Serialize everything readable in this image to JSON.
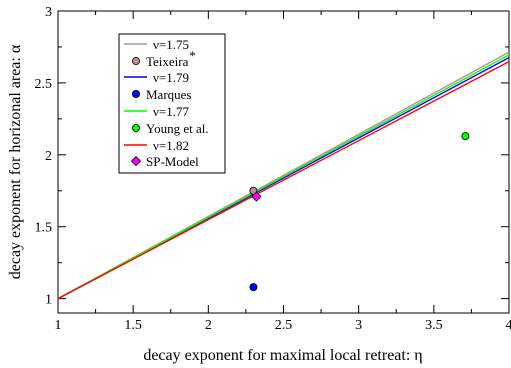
{
  "chart_data": {
    "type": "scatter",
    "xlabel": "decay exponent for maximal local retreat: η",
    "ylabel": "decay exponent for horizonal area: α",
    "xlim": [
      1,
      4
    ],
    "ylim": [
      0.9,
      3
    ],
    "x_ticks": [
      "1",
      "1.5",
      "2",
      "2.5",
      "3",
      "3.5",
      "4"
    ],
    "y_ticks": [
      "1",
      "1.5",
      "2",
      "2.5",
      "3"
    ],
    "grid": false,
    "legend_placement": "top-left",
    "lines": [
      {
        "name": "ν=1.75",
        "color": "#bc8f8f",
        "x": [
          1,
          4
        ],
        "y": [
          1.0,
          2.714
        ]
      },
      {
        "name": "ν=1.79",
        "color": "#0000ff",
        "x": [
          1,
          4
        ],
        "y": [
          1.0,
          2.676
        ]
      },
      {
        "name": "ν=1.77",
        "color": "#00ff00",
        "x": [
          1,
          4
        ],
        "y": [
          1.0,
          2.695
        ]
      },
      {
        "name": "ν=1.82",
        "color": "#ff0000",
        "x": [
          1,
          4
        ],
        "y": [
          1.0,
          2.648
        ]
      }
    ],
    "points": [
      {
        "name": "Teixeira",
        "superscript": "*",
        "color": "#bc8f8f",
        "marker": "circle",
        "x": 2.3,
        "y": 1.75
      },
      {
        "name": "Marques",
        "color": "#0000ff",
        "marker": "circle",
        "x": 2.3,
        "y": 1.08
      },
      {
        "name": "Young et al.",
        "color": "#00ff00",
        "marker": "circle",
        "x": 3.71,
        "y": 2.13
      },
      {
        "name": "SP-Model",
        "color": "#ff00ff",
        "marker": "diamond",
        "x": 2.32,
        "y": 1.71
      }
    ],
    "legend": [
      {
        "label": "ν=1.75",
        "kind": "line",
        "color": "#bc8f8f"
      },
      {
        "label": "Teixeira",
        "superscript": "*",
        "kind": "circle",
        "color": "#bc8f8f"
      },
      {
        "label": "ν=1.79",
        "kind": "line",
        "color": "#0000ff"
      },
      {
        "label": "Marques",
        "kind": "circle",
        "color": "#0000ff"
      },
      {
        "label": "ν=1.77",
        "kind": "line",
        "color": "#00ff00"
      },
      {
        "label": "Young et al.",
        "kind": "circle",
        "color": "#00ff00"
      },
      {
        "label": "ν=1.82",
        "kind": "line",
        "color": "#ff0000"
      },
      {
        "label": "SP-Model",
        "kind": "diamond",
        "color": "#ff00ff"
      }
    ]
  }
}
